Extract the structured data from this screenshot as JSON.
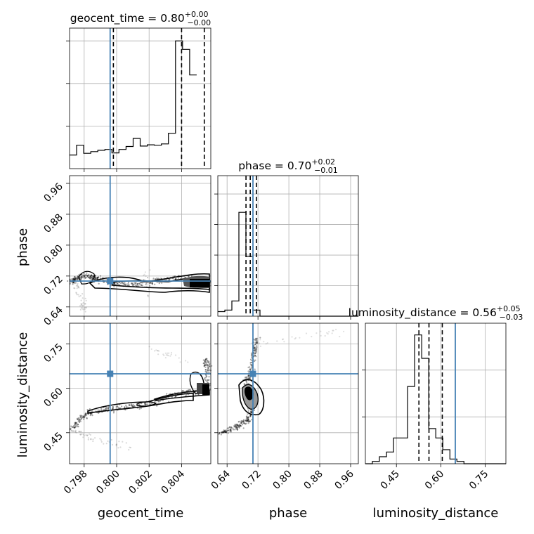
{
  "chart_data": {
    "type": "corner",
    "parameters": [
      "geocent_time",
      "phase",
      "luminosity_distance"
    ],
    "axis_labels": {
      "geocent_time": "geocent_time",
      "phase": "phase",
      "luminosity_distance": "luminosity_distance"
    },
    "ranges": {
      "geocent_time": [
        0.7971,
        0.8058
      ],
      "phase": [
        0.616,
        0.98
      ],
      "luminosity_distance": [
        0.345,
        0.82
      ]
    },
    "ticks": {
      "geocent_time": [
        0.798,
        0.8,
        0.802,
        0.804
      ],
      "phase": [
        0.64,
        0.72,
        0.8,
        0.88,
        0.96
      ],
      "luminosity_distance": [
        0.45,
        0.6,
        0.75
      ]
    },
    "tick_labels": {
      "geocent_time": [
        "0.798",
        "0.800",
        "0.802",
        "0.804"
      ],
      "phase": [
        "0.64",
        "0.72",
        "0.80",
        "0.88",
        "0.96"
      ],
      "luminosity_distance": [
        "0.45",
        "0.60",
        "0.75"
      ]
    },
    "truths": {
      "geocent_time": 0.7996,
      "phase": 0.707,
      "luminosity_distance": 0.649
    },
    "titles": [
      {
        "param": "geocent_time",
        "prefix": "geocent_time = 0.80",
        "sup": "+0.00",
        "sub": "−0.00"
      },
      {
        "param": "phase",
        "prefix": "phase = 0.70",
        "sup": "+0.02",
        "sub": "−0.01"
      },
      {
        "param": "luminosity_distance",
        "prefix": "luminosity_distance = 0.56",
        "sup": "+0.05",
        "sub": "−0.03"
      }
    ],
    "quantiles": {
      "geocent_time": [
        0.7998,
        0.804,
        0.8054
      ],
      "phase": [
        0.689,
        0.7,
        0.716
      ],
      "luminosity_distance": [
        0.526,
        0.56,
        0.605
      ]
    },
    "hist_yticks": {
      "geocent_time": [
        1,
        2,
        3
      ],
      "phase": [
        1,
        2,
        3,
        4
      ],
      "luminosity_distance": [
        1,
        2
      ]
    },
    "histograms": {
      "geocent_time": {
        "edges_start": 0.7971,
        "bin_width": 0.000435,
        "counts": [
          0.32,
          0.55,
          0.36,
          0.4,
          0.43,
          0.45,
          0.37,
          0.45,
          0.52,
          0.71,
          0.53,
          0.56,
          0.55,
          0.58,
          0.83,
          3.0,
          2.8,
          2.2
        ]
      },
      "phase": {
        "edges_start": 0.616,
        "bin_width": 0.0182,
        "counts": [
          0.15,
          0.2,
          0.5,
          3.4,
          1.95,
          0.2,
          0,
          0,
          0,
          0,
          0,
          0,
          0,
          0,
          0,
          0,
          0,
          0,
          0,
          0
        ]
      },
      "luminosity_distance": {
        "edges_start": 0.345,
        "bin_width": 0.0238,
        "counts": [
          0,
          0.05,
          0.15,
          0.25,
          0.55,
          0.55,
          1.65,
          2.75,
          2.25,
          0.75,
          0.55,
          0.3,
          0.1,
          0.05,
          0,
          0,
          0,
          0,
          0,
          0
        ]
      }
    },
    "grid": true
  }
}
